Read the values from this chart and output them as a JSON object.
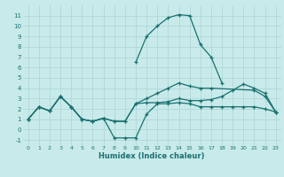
{
  "xlabel": "Humidex (Indice chaleur)",
  "background_color": "#c8eaea",
  "grid_color": "#afd8d8",
  "line_color": "#1a7070",
  "xlim": [
    -0.5,
    23.5
  ],
  "ylim": [
    -1.5,
    12.0
  ],
  "xticks": [
    0,
    1,
    2,
    3,
    4,
    5,
    6,
    7,
    8,
    9,
    10,
    11,
    12,
    13,
    14,
    15,
    16,
    17,
    18,
    19,
    20,
    21,
    22,
    23
  ],
  "yticks": [
    -1,
    0,
    1,
    2,
    3,
    4,
    5,
    6,
    7,
    8,
    9,
    10,
    11
  ],
  "lines": [
    {
      "x": [
        10,
        11,
        12,
        13,
        14,
        15,
        16,
        17,
        18
      ],
      "y": [
        6.5,
        9.0,
        10.0,
        10.8,
        11.1,
        11.0,
        8.2,
        7.0,
        4.5
      ]
    },
    {
      "x": [
        0,
        1,
        2,
        3,
        4,
        5,
        6,
        7,
        8,
        9,
        10,
        11,
        12,
        13,
        14,
        15,
        16,
        17,
        18,
        19,
        20,
        21,
        22,
        23
      ],
      "y": [
        1,
        2.2,
        1.8,
        3.2,
        2.2,
        1.0,
        0.8,
        1.1,
        0.8,
        0.8,
        2.5,
        2.6,
        2.6,
        2.7,
        3.0,
        2.8,
        2.8,
        2.9,
        3.2,
        3.8,
        4.4,
        4.0,
        3.5,
        1.7
      ]
    },
    {
      "x": [
        0,
        1,
        2,
        3,
        4,
        5,
        6,
        7,
        8,
        9,
        10,
        11,
        12,
        13,
        14,
        15,
        16,
        17,
        18,
        19,
        20,
        21,
        22,
        23
      ],
      "y": [
        1,
        2.2,
        1.8,
        3.2,
        2.2,
        1.0,
        0.8,
        1.1,
        -0.8,
        -0.8,
        -0.8,
        1.5,
        2.5,
        2.5,
        2.6,
        2.5,
        2.2,
        2.2,
        2.2,
        2.2,
        2.2,
        2.2,
        2.0,
        1.7
      ]
    },
    {
      "x": [
        0,
        1,
        2,
        3,
        4,
        5,
        6,
        7,
        8,
        9,
        10,
        11,
        12,
        13,
        14,
        15,
        16,
        17,
        21,
        22,
        23
      ],
      "y": [
        1,
        2.2,
        1.8,
        3.2,
        2.2,
        1.0,
        0.8,
        1.1,
        0.8,
        0.8,
        2.5,
        3.0,
        3.5,
        4.0,
        4.5,
        4.2,
        4.0,
        4.0,
        3.8,
        3.2,
        1.7
      ]
    }
  ]
}
